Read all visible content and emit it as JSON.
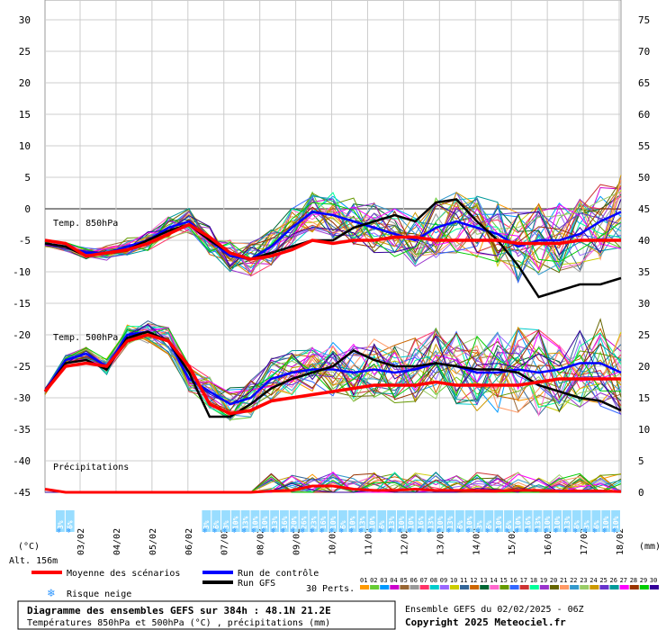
{
  "chart_data": {
    "type": "line",
    "title": "Diagramme des ensembles GEFS sur 384h : 48.1N 21.2E",
    "subtitle": "Températures 850hPa et 500hPa (°C) , précipitations (mm)",
    "run_info": "Ensemble GEFS du 02/02/2025 - 06Z",
    "copyright": "Copyright 2025 Meteociel.fr",
    "altitude": "Alt. 156m",
    "left_unit": "(°C)",
    "right_unit": "(mm)",
    "left_ticks": [
      "30",
      "25",
      "20",
      "15",
      "10",
      "5",
      "0",
      "-5",
      "-10",
      "-15",
      "-20",
      "-25",
      "-30",
      "-35",
      "-40",
      "-45"
    ],
    "right_ticks": [
      "75",
      "70",
      "65",
      "60",
      "55",
      "50",
      "45",
      "40",
      "35",
      "30",
      "25",
      "20",
      "15",
      "10",
      "5",
      "0"
    ],
    "left_range": [
      -45,
      30
    ],
    "right_range": [
      0,
      75
    ],
    "x_dates": [
      "03/02",
      "04/02",
      "05/02",
      "06/02",
      "07/02",
      "08/02",
      "09/02",
      "10/02",
      "11/02",
      "12/02",
      "13/02",
      "14/02",
      "15/02",
      "16/02",
      "17/02",
      "18/02"
    ],
    "section_labels": {
      "t850": "Temp. 850hPa",
      "t500": "Temp. 500hPa",
      "precip": "Précipitations"
    },
    "series_t850_mean": {
      "name": "Moyenne des scénarios",
      "color": "#ff0000",
      "values": [
        -5,
        -5.5,
        -7.5,
        -7,
        -6.5,
        -5.5,
        -4,
        -2.5,
        -4.5,
        -7,
        -8,
        -7.5,
        -6.5,
        -5,
        -5.5,
        -5,
        -5,
        -4.5,
        -4.5,
        -5,
        -5,
        -5,
        -5,
        -5.5,
        -5.5,
        -5.5,
        -5,
        -5,
        -5
      ]
    },
    "series_t850_control": {
      "name": "Run de contrôle",
      "color": "#0000ff",
      "values": [
        -5.5,
        -6,
        -7,
        -7,
        -6,
        -5,
        -3,
        -2,
        -5,
        -7.5,
        -8,
        -6,
        -3,
        -0.5,
        -1,
        -2,
        -3,
        -4,
        -5,
        -3,
        -2,
        -3,
        -4,
        -6,
        -5,
        -5,
        -4,
        -2,
        -0.5
      ]
    },
    "series_t850_gfs": {
      "name": "Run GFS",
      "color": "#000000",
      "values": [
        -5.5,
        -6,
        -7.5,
        -7,
        -6.5,
        -5,
        -3.5,
        -2.5,
        -5,
        -7,
        -8,
        -7,
        -6,
        -5,
        -5,
        -3,
        -2,
        -1,
        -2,
        1,
        1.5,
        -2,
        -5,
        -9,
        -14,
        -13,
        -12,
        -12,
        -11
      ]
    },
    "series_t500_mean": {
      "name": "Moyenne des scénarios",
      "color": "#ff0000",
      "values": [
        -29,
        -25,
        -24.5,
        -25,
        -21,
        -20,
        -21,
        -25,
        -31,
        -32.5,
        -32,
        -30.5,
        -30,
        -29.5,
        -29,
        -28.5,
        -28,
        -28,
        -28,
        -27.5,
        -28,
        -28,
        -28,
        -28,
        -27.5,
        -27,
        -27,
        -27,
        -27
      ]
    },
    "series_t500_control": {
      "name": "Run de contrôle",
      "color": "#0000ff",
      "values": [
        -29,
        -24,
        -23,
        -25,
        -20,
        -19.5,
        -21,
        -27,
        -29,
        -31,
        -30,
        -27,
        -26,
        -25.5,
        -25.5,
        -26,
        -25.5,
        -26,
        -25.5,
        -24.5,
        -25,
        -26,
        -26,
        -25.5,
        -26,
        -25.5,
        -24.5,
        -24.5,
        -26
      ]
    },
    "series_t500_gfs": {
      "name": "Run GFS",
      "color": "#000000",
      "values": [
        -29,
        -24.5,
        -24,
        -25.5,
        -20.5,
        -19.5,
        -21,
        -26,
        -33,
        -33,
        -31,
        -28.5,
        -27,
        -26,
        -25,
        -22.5,
        -24,
        -25,
        -25,
        -24.5,
        -25,
        -25.5,
        -25.5,
        -26,
        -28,
        -29,
        -30,
        -30.5,
        -32
      ]
    },
    "precip_mean": {
      "name": "Moyenne des scénarios",
      "color": "#ff0000",
      "values": [
        0.5,
        0,
        0,
        0,
        0,
        0,
        0,
        0,
        0,
        0,
        0,
        0.2,
        0.3,
        1,
        1,
        0.5,
        0.3,
        0.3,
        0.5,
        0.3,
        0.3,
        0.3,
        0.2,
        0.3,
        0.3,
        0.2,
        0.2,
        0.2,
        0.1
      ]
    },
    "snow_risk": {
      "label": "Risque neige",
      "values": [
        "3%",
        "6%",
        "",
        "",
        "",
        "",
        "",
        "",
        "",
        "",
        "",
        "",
        "",
        "",
        "",
        "3%",
        "6%",
        "3%",
        "10%",
        "13%",
        "10%",
        "10%",
        "13%",
        "16%",
        "20%",
        "26%",
        "23%",
        "16%",
        "10%",
        "6%",
        "10%",
        "13%",
        "10%",
        "6%",
        "13%",
        "10%",
        "10%",
        "16%",
        "13%",
        "10%",
        "13%",
        "6%",
        "10%",
        "3%",
        "6%",
        "10%",
        "6%",
        "10%",
        "16%",
        "13%",
        "10%",
        "10%",
        "13%",
        "6%",
        "3%",
        "6%",
        "10%",
        "10%"
      ]
    },
    "legend": {
      "mean": "Moyenne des scénarios",
      "control": "Run de contrôle",
      "gfs": "Run GFS",
      "snow": "Risque neige",
      "perts": "30 Perts.",
      "pert_numbers": [
        "01",
        "02",
        "03",
        "04",
        "05",
        "06",
        "07",
        "08",
        "09",
        "10",
        "11",
        "12",
        "13",
        "14",
        "15",
        "16",
        "17",
        "18",
        "19",
        "20",
        "21",
        "22",
        "23",
        "24",
        "25",
        "26",
        "27",
        "28",
        "29",
        "30"
      ],
      "pert_colors": [
        "#ff9900",
        "#66cc33",
        "#0099ff",
        "#cc00cc",
        "#996633",
        "#999999",
        "#ff3366",
        "#00cccc",
        "#9966ff",
        "#cccc00",
        "#336699",
        "#cc6600",
        "#006633",
        "#ff66cc",
        "#669900",
        "#3366ff",
        "#cc3333",
        "#00ff99",
        "#9933cc",
        "#666600",
        "#ff9966",
        "#3399cc",
        "#99cc66",
        "#cc9900",
        "#6633cc",
        "#009999",
        "#ff00ff",
        "#993300",
        "#00cc00",
        "#330099"
      ]
    }
  }
}
